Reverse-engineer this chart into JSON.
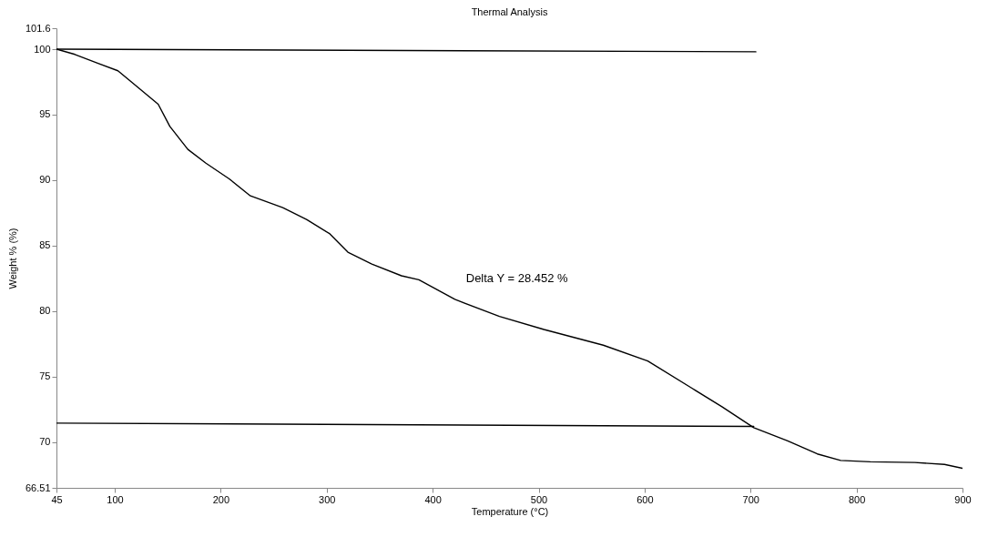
{
  "chart_data": {
    "type": "line",
    "title": "Thermal Analysis",
    "xlabel": "Temperature (°C)",
    "ylabel": "Weight % (%)",
    "annotations": [
      "Delta Y = 28.452 %"
    ],
    "xlim": [
      45,
      900
    ],
    "xticks": [
      45,
      100,
      200,
      300,
      400,
      500,
      600,
      700,
      800,
      900
    ],
    "ylim": [
      66.51,
      101.6
    ],
    "yticks": [
      66.51,
      70,
      75,
      80,
      85,
      90,
      95,
      100,
      101.6
    ],
    "grid": false,
    "marker": "none",
    "line_style": "solid",
    "series": [
      {
        "color": "#000000",
        "x": [
          45,
          62.4,
          84.9,
          103,
          115.7,
          141,
          152,
          169,
          186,
          208,
          228,
          258.6,
          281,
          303,
          320,
          342.6,
          370.6,
          387,
          421,
          463,
          505,
          561,
          603,
          645,
          673,
          703,
          735,
          763,
          785,
          813,
          855,
          883,
          900
        ],
        "values": [
          100,
          99.6,
          98.9,
          98.35,
          97.5,
          95.8,
          94.1,
          92.35,
          91.3,
          90.1,
          88.8,
          87.9,
          87.0,
          85.9,
          84.5,
          83.6,
          82.7,
          82.4,
          80.9,
          79.6,
          78.6,
          77.4,
          76.2,
          74.1,
          72.7,
          71.1,
          70.1,
          69.1,
          68.6,
          68.5,
          68.45,
          68.3,
          68.0
        ]
      },
      {
        "color": "#000000",
        "x": [
          45,
          705
        ],
        "values": [
          100,
          99.8
        ]
      },
      {
        "color": "#000000",
        "x": [
          45,
          703
        ],
        "values": [
          71.45,
          71.2
        ]
      }
    ]
  }
}
